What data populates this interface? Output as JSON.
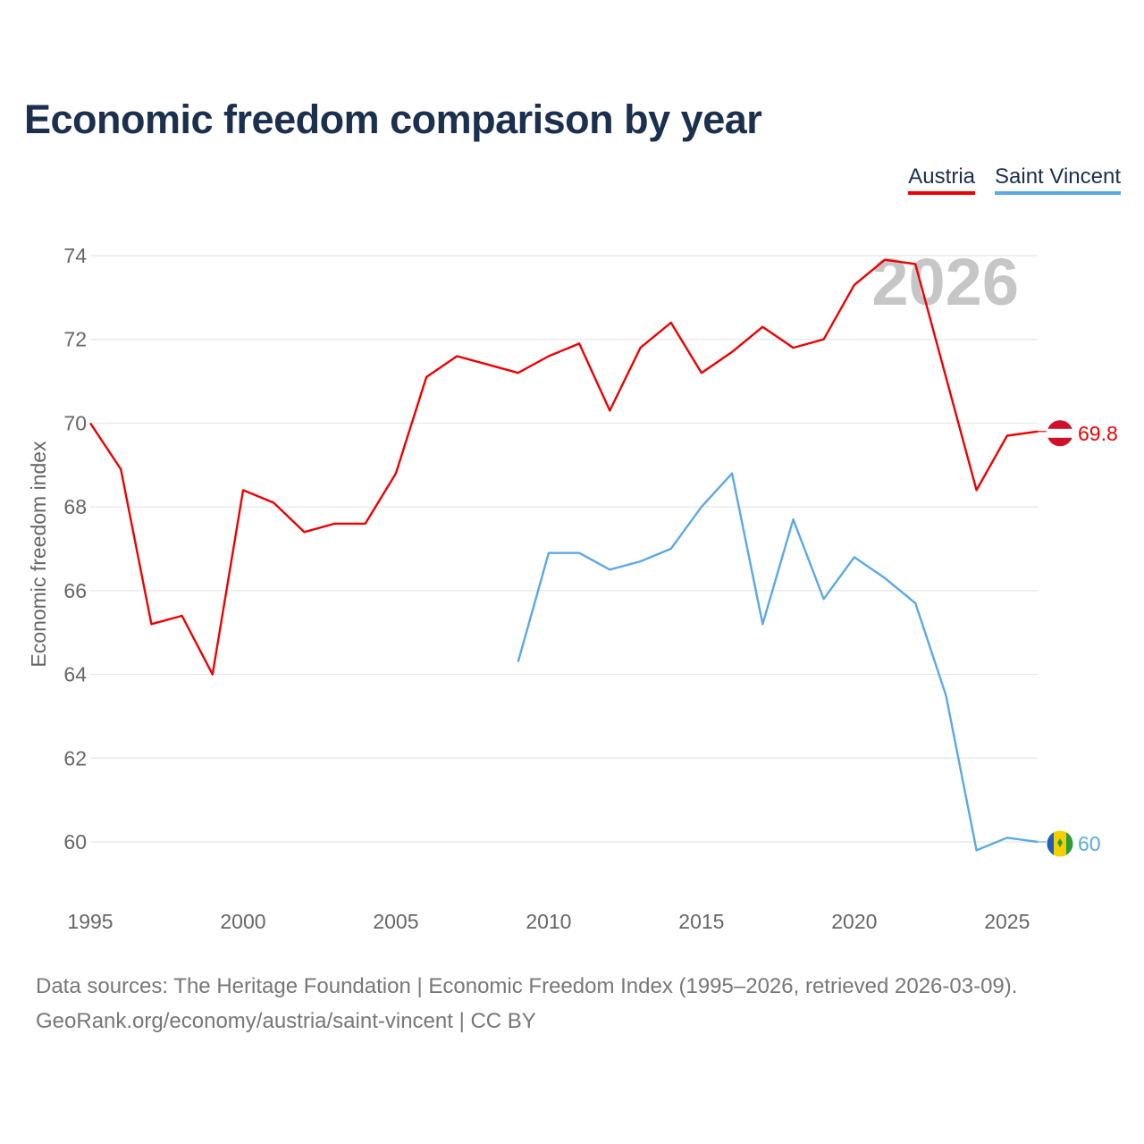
{
  "colors": {
    "austria": "#ee0000",
    "saint_vincent": "#5ca8e6",
    "title": "#1b2f4e",
    "grid": "#e6e6e6",
    "axis_text": "#666666",
    "watermark": "#c6c6c6"
  },
  "chart_data": {
    "type": "line",
    "title": "Economic freedom comparison by year",
    "xlabel": "",
    "ylabel": "Economic freedom index",
    "xlim": [
      1995,
      2026
    ],
    "ylim": [
      59,
      75
    ],
    "xticks": [
      1995,
      2000,
      2005,
      2010,
      2015,
      2020,
      2025
    ],
    "yticks": [
      60,
      62,
      64,
      66,
      68,
      70,
      72,
      74
    ],
    "watermark_year": "2026",
    "series": [
      {
        "name": "Austria",
        "flag": "austria-flag-icon",
        "end_label": "69.8",
        "points": [
          [
            1995,
            70.0
          ],
          [
            1996,
            68.9
          ],
          [
            1997,
            65.2
          ],
          [
            1998,
            65.4
          ],
          [
            1999,
            64.0
          ],
          [
            2000,
            68.4
          ],
          [
            2001,
            68.1
          ],
          [
            2002,
            67.4
          ],
          [
            2003,
            67.6
          ],
          [
            2004,
            67.6
          ],
          [
            2005,
            68.8
          ],
          [
            2006,
            71.1
          ],
          [
            2007,
            71.6
          ],
          [
            2008,
            71.4
          ],
          [
            2009,
            71.2
          ],
          [
            2010,
            71.6
          ],
          [
            2011,
            71.9
          ],
          [
            2012,
            70.3
          ],
          [
            2013,
            71.8
          ],
          [
            2014,
            72.4
          ],
          [
            2015,
            71.2
          ],
          [
            2016,
            71.7
          ],
          [
            2017,
            72.3
          ],
          [
            2018,
            71.8
          ],
          [
            2019,
            72.0
          ],
          [
            2020,
            73.3
          ],
          [
            2021,
            73.9
          ],
          [
            2022,
            73.8
          ],
          [
            2023,
            71.1
          ],
          [
            2024,
            68.4
          ],
          [
            2025,
            69.7
          ],
          [
            2026,
            69.8
          ]
        ]
      },
      {
        "name": "Saint Vincent",
        "flag": "saint-vincent-flag-icon",
        "end_label": "60",
        "points": [
          [
            2009,
            64.3
          ],
          [
            2010,
            66.9
          ],
          [
            2011,
            66.9
          ],
          [
            2012,
            66.5
          ],
          [
            2013,
            66.7
          ],
          [
            2014,
            67.0
          ],
          [
            2015,
            68.0
          ],
          [
            2016,
            68.8
          ],
          [
            2017,
            65.2
          ],
          [
            2018,
            67.7
          ],
          [
            2019,
            65.8
          ],
          [
            2020,
            66.8
          ],
          [
            2021,
            66.3
          ],
          [
            2022,
            65.7
          ],
          [
            2023,
            63.5
          ],
          [
            2024,
            59.8
          ],
          [
            2025,
            60.1
          ],
          [
            2026,
            60.0
          ]
        ]
      }
    ]
  },
  "footer": {
    "line1": "Data sources: The Heritage Foundation | Economic Freedom Index (1995–2026, retrieved 2026-03-09).",
    "line2": "GeoRank.org/economy/austria/saint-vincent | CC BY"
  }
}
